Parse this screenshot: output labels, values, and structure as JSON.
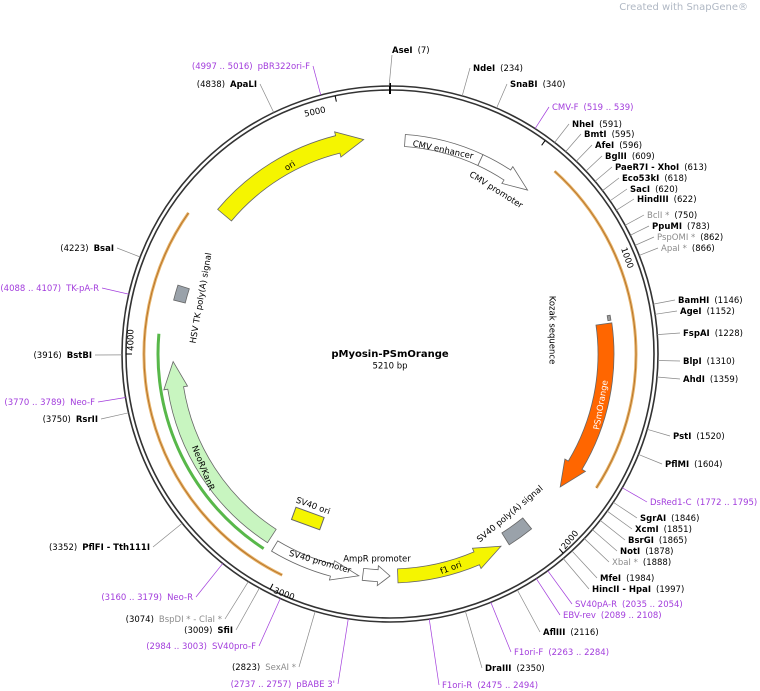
{
  "watermark": "Created with SnapGene®",
  "map": {
    "title": "pMyosin-PSmOrange",
    "size": "5210 bp"
  },
  "ticks": [
    "1000",
    "2000",
    "3000",
    "4000",
    "5000"
  ],
  "features": [
    {
      "label": "ori"
    },
    {
      "label": "CMV enhancer"
    },
    {
      "label": "CMV promoter"
    },
    {
      "label": "Kozak sequence"
    },
    {
      "label": "PSmOrange"
    },
    {
      "label": "SV40 poly(A) signal"
    },
    {
      "label": "f1 ori"
    },
    {
      "label": "AmpR promoter"
    },
    {
      "label": "SV40 promoter"
    },
    {
      "label": "SV40 ori"
    },
    {
      "label": "NeoR/KanR"
    },
    {
      "label": "HSV TK poly(A) signal"
    }
  ],
  "sites": [
    {
      "name": "AseI",
      "pos": "(7)",
      "color": "#000000"
    },
    {
      "name": "NdeI",
      "pos": "(234)",
      "color": "#000000"
    },
    {
      "name": "SnaBI",
      "pos": "(340)",
      "color": "#000000"
    },
    {
      "name": "CMV-F",
      "pos": "(519 .. 539)",
      "color": "#a23cdc"
    },
    {
      "name": "NheI",
      "pos": "(591)",
      "color": "#000000"
    },
    {
      "name": "BmtI",
      "pos": "(595)",
      "color": "#000000"
    },
    {
      "name": "AfeI",
      "pos": "(596)",
      "color": "#000000"
    },
    {
      "name": "BglII",
      "pos": "(609)",
      "color": "#000000"
    },
    {
      "name": "PaeR7I - XhoI",
      "pos": "(613)",
      "color": "#000000"
    },
    {
      "name": "Eco53kI",
      "pos": "(618)",
      "color": "#000000"
    },
    {
      "name": "SacI",
      "pos": "(620)",
      "color": "#000000"
    },
    {
      "name": "HindIII",
      "pos": "(622)",
      "color": "#000000"
    },
    {
      "name": "BclI *",
      "pos": "(750)",
      "color": "#8c8c8c"
    },
    {
      "name": "PpuMI",
      "pos": "(783)",
      "color": "#000000"
    },
    {
      "name": "PspOMI *",
      "pos": "(862)",
      "color": "#8c8c8c"
    },
    {
      "name": "ApaI *",
      "pos": "(866)",
      "color": "#8c8c8c"
    },
    {
      "name": "BamHI",
      "pos": "(1146)",
      "color": "#000000"
    },
    {
      "name": "AgeI",
      "pos": "(1152)",
      "color": "#000000"
    },
    {
      "name": "FspAI",
      "pos": "(1228)",
      "color": "#000000"
    },
    {
      "name": "BlpI",
      "pos": "(1310)",
      "color": "#000000"
    },
    {
      "name": "AhdI",
      "pos": "(1359)",
      "color": "#000000"
    },
    {
      "name": "PstI",
      "pos": "(1520)",
      "color": "#000000"
    },
    {
      "name": "PflMI",
      "pos": "(1604)",
      "color": "#000000"
    },
    {
      "name": "DsRed1-C",
      "pos": "(1772 .. 1795)",
      "color": "#a23cdc"
    },
    {
      "name": "SgrAI",
      "pos": "(1846)",
      "color": "#000000"
    },
    {
      "name": "XcmI",
      "pos": "(1851)",
      "color": "#000000"
    },
    {
      "name": "BsrGI",
      "pos": "(1865)",
      "color": "#000000"
    },
    {
      "name": "NotI",
      "pos": "(1878)",
      "color": "#000000"
    },
    {
      "name": "XbaI *",
      "pos": "(1888)",
      "color": "#8c8c8c"
    },
    {
      "name": "MfeI",
      "pos": "(1984)",
      "color": "#000000"
    },
    {
      "name": "HincII - HpaI",
      "pos": "(1997)",
      "color": "#000000"
    },
    {
      "name": "SV40pA-R",
      "pos": "(2035 .. 2054)",
      "color": "#a23cdc"
    },
    {
      "name": "EBV-rev",
      "pos": "(2089 .. 2108)",
      "color": "#a23cdc"
    },
    {
      "name": "AflIII",
      "pos": "(2116)",
      "color": "#000000"
    },
    {
      "name": "F1ori-F",
      "pos": "(2263 .. 2284)",
      "color": "#a23cdc"
    },
    {
      "name": "DraIII",
      "pos": "(2350)",
      "color": "#000000"
    },
    {
      "name": "F1ori-R",
      "pos": "(2475 .. 2494)",
      "color": "#a23cdc"
    },
    {
      "name": "pBABE 3'",
      "pos": "(2737 .. 2757)",
      "color": "#a23cdc"
    },
    {
      "name": "SexAI *",
      "pos": "(2823)",
      "color": "#8c8c8c"
    },
    {
      "name": "SV40pro-F",
      "pos": "(2984 .. 3003)",
      "color": "#a23cdc"
    },
    {
      "name": "SfiI",
      "pos": "(3009)",
      "color": "#000000"
    },
    {
      "name": "BspDI * - ClaI *",
      "pos": "(3074)",
      "color": "#8c8c8c"
    },
    {
      "name": "Neo-R",
      "pos": "(3160 .. 3179)",
      "color": "#a23cdc"
    },
    {
      "name": "PflFI - Tth111I",
      "pos": "(3352)",
      "color": "#000000"
    },
    {
      "name": "RsrII",
      "pos": "(3750)",
      "color": "#000000"
    },
    {
      "name": "Neo-F",
      "pos": "(3770 .. 3789)",
      "color": "#a23cdc"
    },
    {
      "name": "BstBI",
      "pos": "(3916)",
      "color": "#000000"
    },
    {
      "name": "TK-pA-R",
      "pos": "(4088 .. 4107)",
      "color": "#a23cdc"
    },
    {
      "name": "BsaI",
      "pos": "(4223)",
      "color": "#000000"
    },
    {
      "name": "ApaLI",
      "pos": "(4838)",
      "color": "#000000"
    },
    {
      "name": "pBR322ori-F",
      "pos": "(4997 .. 5016)",
      "color": "#a23cdc"
    }
  ]
}
